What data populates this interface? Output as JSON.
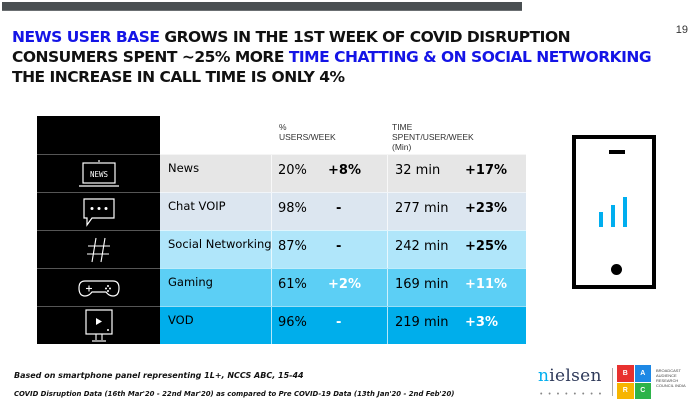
{
  "page_number": "19",
  "headline": {
    "line1": {
      "highlight": "NEWS USER BASE",
      "rest": " GROWS IN THE 1ST WEEK OF COVID DISRUPTION"
    },
    "line2": {
      "prefix": "CONSUMERS SPENT ~25% MORE ",
      "highlight": "TIME CHATTING & ON SOCIAL NETWORKING"
    },
    "line3": "THE INCREASE IN CALL TIME IS ONLY 4%",
    "highlight_color": "#1414e6"
  },
  "table": {
    "headers": {
      "users": "% USERS/WEEK",
      "time_line1": "TIME SPENT/USER/WEEK",
      "time_line2": "(Min)"
    },
    "rows": [
      {
        "icon": "news-icon",
        "category": "News",
        "users": "20%",
        "users_change": "+8%",
        "time": "32 min",
        "time_change": "+17%",
        "bg": "#e6e6e6",
        "change_color": "#000000"
      },
      {
        "icon": "chat-icon",
        "category": "Chat VOIP",
        "users": "98%",
        "users_change": "-",
        "time": "277 min",
        "time_change": "+23%",
        "bg": "#dce6f0",
        "change_color": "#000000"
      },
      {
        "icon": "hashtag-icon",
        "category": "Social Networking",
        "users": "87%",
        "users_change": "-",
        "time": "242 min",
        "time_change": "+25%",
        "bg": "#b0e6fa",
        "change_color": "#000000"
      },
      {
        "icon": "gamepad-icon",
        "category": "Gaming",
        "users": "61%",
        "users_change": "+2%",
        "time": "169 min",
        "time_change": "+11%",
        "bg": "#5ccff5",
        "change_color": "#ffffff"
      },
      {
        "icon": "video-screen-icon",
        "category": "VOD",
        "users": "96%",
        "users_change": "-",
        "time": "219 min",
        "time_change": "+3%",
        "bg": "#00aeeb",
        "change_color": "#ffffff"
      }
    ]
  },
  "notes": {
    "line1": "Based on smartphone panel representing 1L+, NCCS ABC, 15-44",
    "line2": "COVID Disruption Data (16th Mar'20 - 22nd Mar'20) as compared to Pre COVID-19 Data (13th Jan'20 - 2nd Feb'20)"
  },
  "logos": {
    "nielsen_first": "n",
    "nielsen_rest": "ielsen",
    "nielsen_dots": "• • • • • • • •",
    "barc_letters": [
      "B",
      "A",
      "R",
      "C"
    ],
    "barc_colors": [
      "#e8312f",
      "#1e88e5",
      "#f7b500",
      "#2db34a"
    ],
    "barc_text": "BROADCAST AUDIENCE RESEARCH COUNCIL INDIA"
  }
}
